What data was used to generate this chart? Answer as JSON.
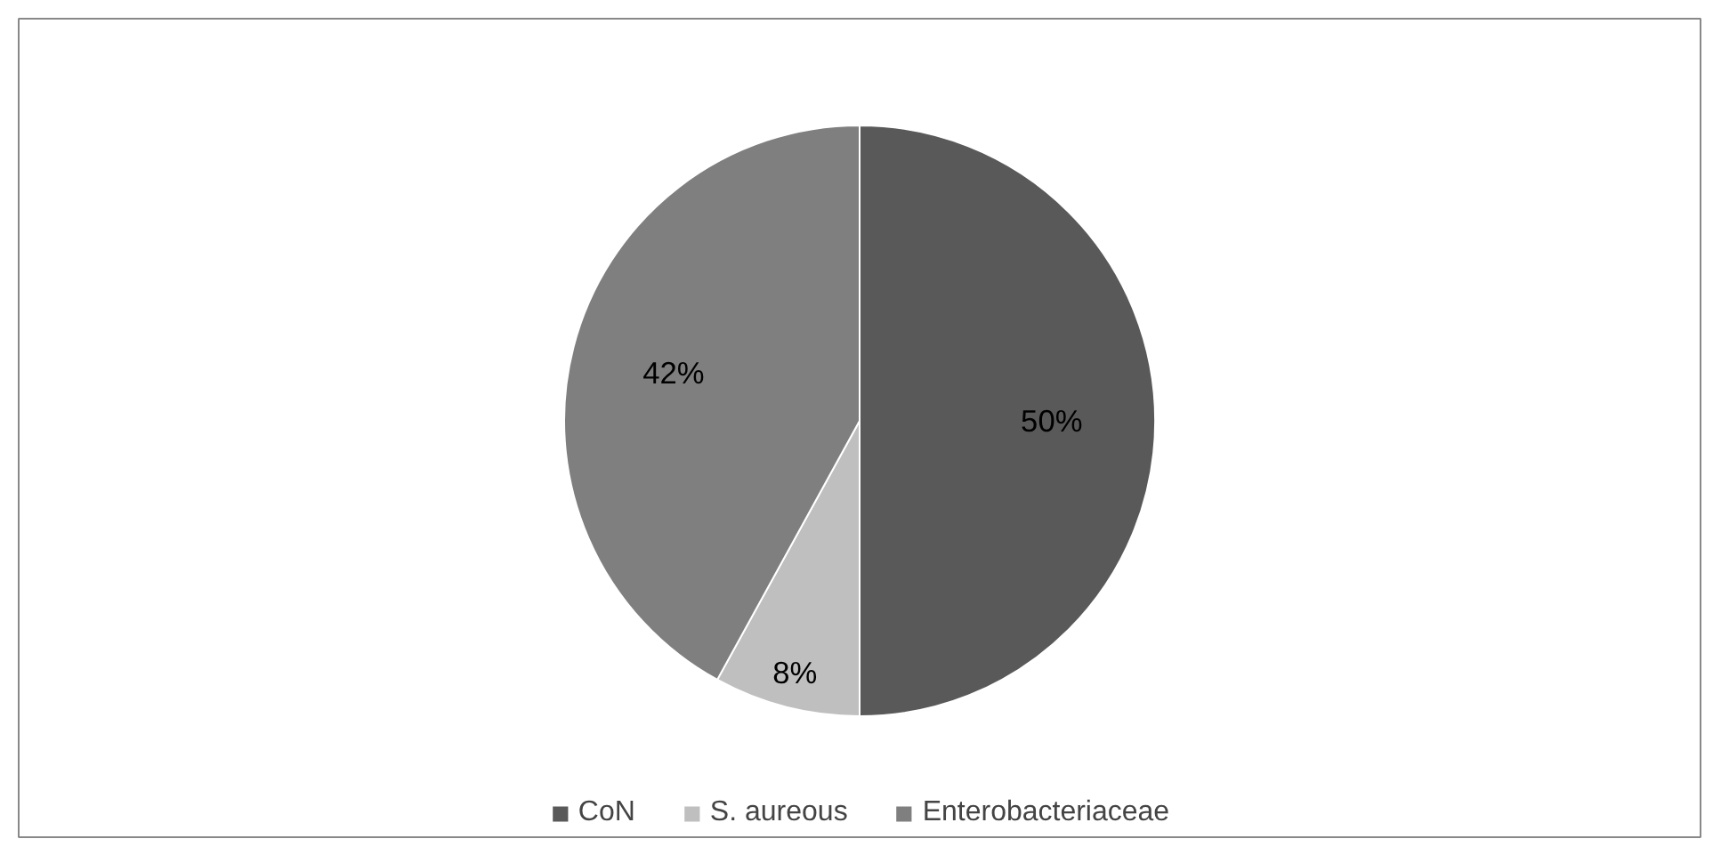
{
  "chart_data": {
    "type": "pie",
    "categories": [
      "CoN",
      "S. aureous",
      "Enterobacteriaceae"
    ],
    "values": [
      50,
      8,
      42
    ],
    "colors": [
      "#595959",
      "#bfbfbf",
      "#7f7f7f"
    ],
    "value_labels": [
      "50%",
      "8%",
      "42%"
    ],
    "legend": "bottom"
  }
}
